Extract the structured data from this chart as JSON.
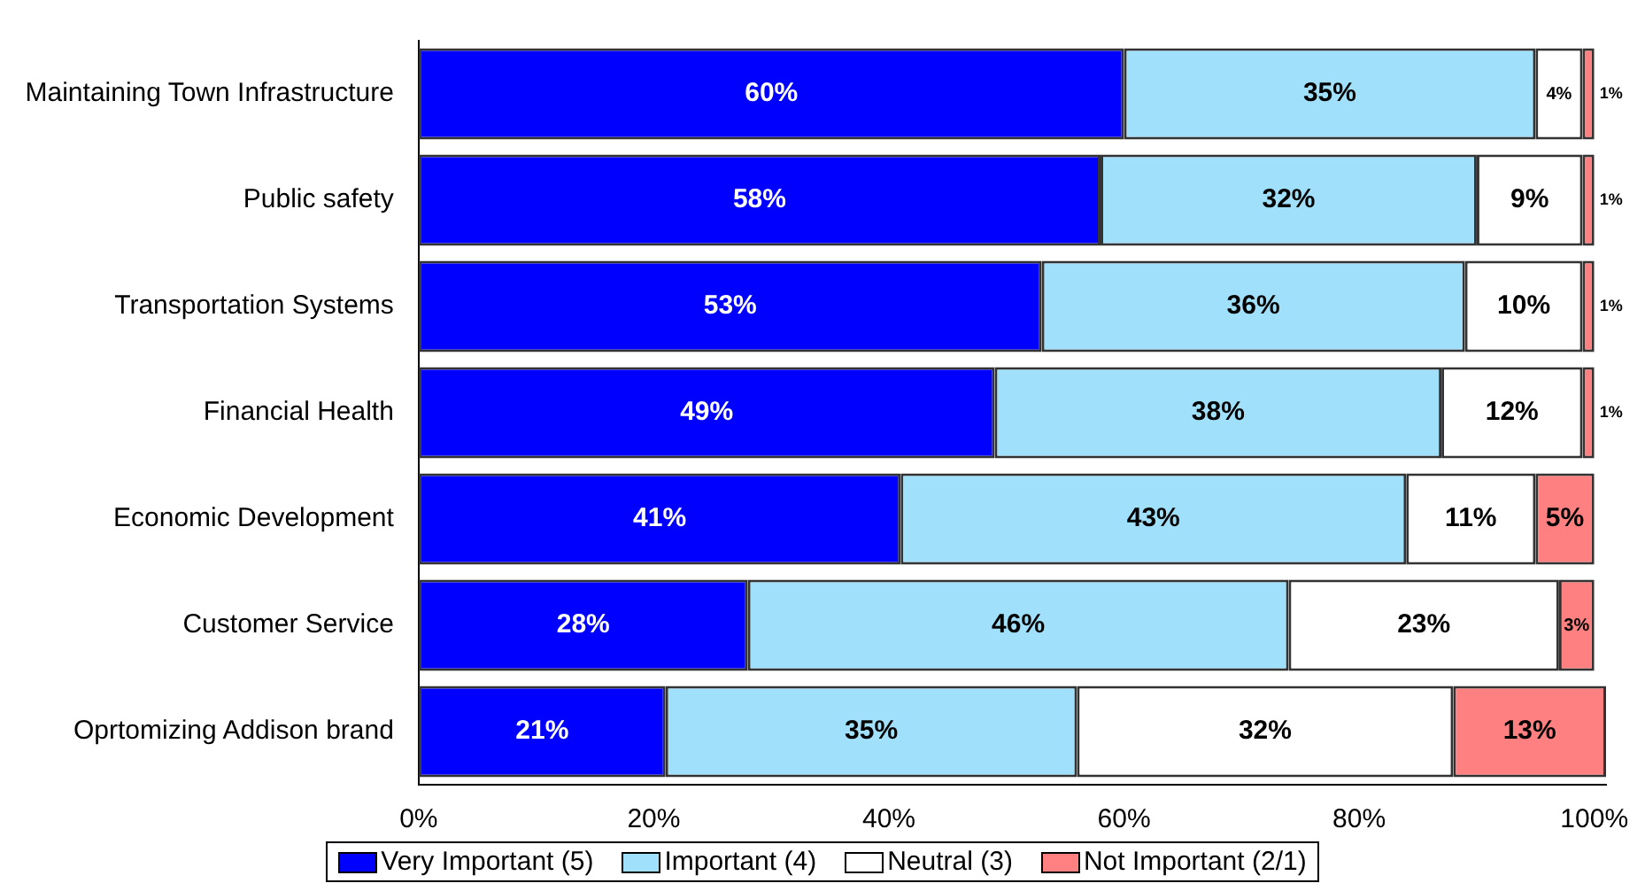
{
  "chart_data": {
    "type": "bar",
    "orientation": "horizontal",
    "stacked": true,
    "categories": [
      "Maintaining Town Infrastructure",
      "Public safety",
      "Transportation Systems",
      "Financial Health",
      "Economic Development",
      "Customer Service",
      "Oprtomizing Addison brand"
    ],
    "series": [
      {
        "name": "Very Important (5)",
        "color": "#0000ff",
        "values": [
          60,
          58,
          53,
          49,
          41,
          28,
          21
        ],
        "value_labels": [
          "60%",
          "58%",
          "53%",
          "49%",
          "41%",
          "28%",
          "21%"
        ]
      },
      {
        "name": "Important (4)",
        "color": "#a0e0fa",
        "values": [
          35,
          32,
          36,
          38,
          43,
          46,
          35
        ],
        "value_labels": [
          "35%",
          "32%",
          "36%",
          "38%",
          "43%",
          "46%",
          "35%"
        ]
      },
      {
        "name": "Neutral (3)",
        "color": "#ffffff",
        "values": [
          4,
          9,
          10,
          12,
          11,
          23,
          32
        ],
        "value_labels": [
          "4%",
          "9%",
          "10%",
          "12%",
          "11%",
          "23%",
          "32%"
        ]
      },
      {
        "name": "Not Important (2/1)",
        "color": "#ff8080",
        "values": [
          1,
          1,
          1,
          1,
          5,
          3,
          13
        ],
        "value_labels": [
          "1%",
          "1%",
          "1%",
          "1%",
          "5%",
          "3%",
          "13%"
        ]
      }
    ],
    "xlim": [
      0,
      101
    ],
    "xticks": [
      {
        "value": 0,
        "label": "0%"
      },
      {
        "value": 20,
        "label": "20%"
      },
      {
        "value": 40,
        "label": "40%"
      },
      {
        "value": 60,
        "label": "60%"
      },
      {
        "value": 80,
        "label": "80%"
      },
      {
        "value": 100,
        "label": "100%"
      }
    ],
    "grid": false,
    "legend": "bottom"
  }
}
